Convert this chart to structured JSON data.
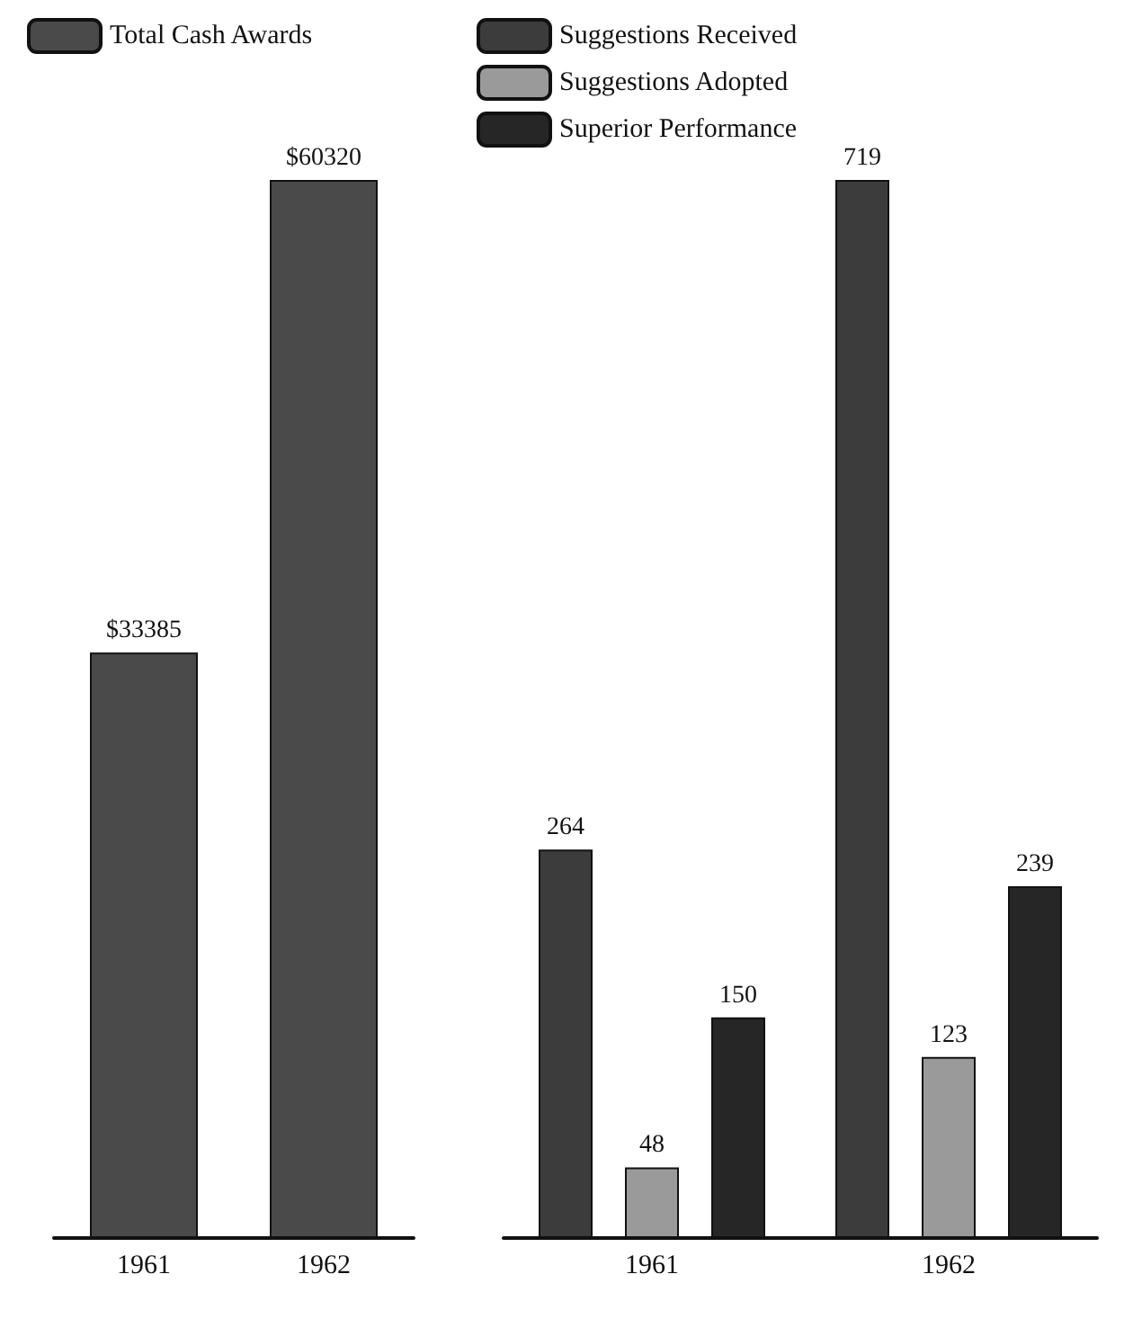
{
  "chart_data": [
    {
      "type": "bar",
      "categories": [
        "1961",
        "1962"
      ],
      "legend": "top",
      "series": [
        {
          "name": "Total Cash Awards",
          "color": "#4a4a4a",
          "values": [
            33385,
            60320
          ],
          "value_labels": [
            "$33385",
            "$60320"
          ]
        }
      ]
    },
    {
      "type": "bar",
      "categories": [
        "1961",
        "1962"
      ],
      "legend": "top",
      "data_labels": true,
      "series": [
        {
          "name": "Suggestions Received",
          "color": "#3c3c3c",
          "values": [
            264,
            719
          ]
        },
        {
          "name": "Suggestions Adopted",
          "color": "#9a9a9a",
          "values": [
            48,
            123
          ]
        },
        {
          "name": "Superior Performance",
          "color": "#262626",
          "values": [
            150,
            239
          ]
        }
      ]
    }
  ]
}
